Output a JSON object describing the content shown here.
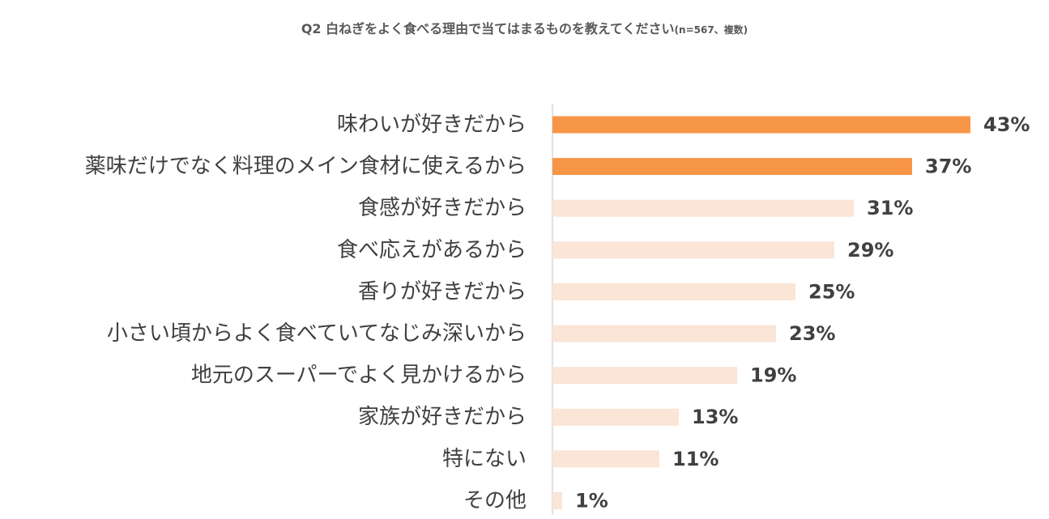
{
  "title": {
    "main": "Q2 白ねぎをよく食べる理由で当てはまるものを教えてください",
    "note": "(n=567、複数)"
  },
  "chart_data": {
    "type": "bar",
    "orientation": "horizontal",
    "categories": [
      "味わいが好きだから",
      "薬味だけでなく料理のメイン食材に使えるから",
      "食感が好きだから",
      "食べ応えがあるから",
      "香りが好きだから",
      "小さい頃からよく食べていてなじみ深いから",
      "地元のスーパーでよく見かけるから",
      "家族が好きだから",
      "特にない",
      "その他"
    ],
    "values": [
      43,
      37,
      31,
      29,
      25,
      23,
      19,
      13,
      11,
      1
    ],
    "value_labels": [
      "43%",
      "37%",
      "31%",
      "29%",
      "25%",
      "23%",
      "19%",
      "13%",
      "11%",
      "1%"
    ],
    "unit": "%",
    "highlight_count": 2,
    "xlim": [
      0,
      43
    ],
    "grid": false,
    "legend": "none",
    "colors": {
      "highlight": "#F79646",
      "normal": "#FBE5D6",
      "axis": "#D9D9D9",
      "text": "#404040",
      "title": "#595959"
    }
  }
}
